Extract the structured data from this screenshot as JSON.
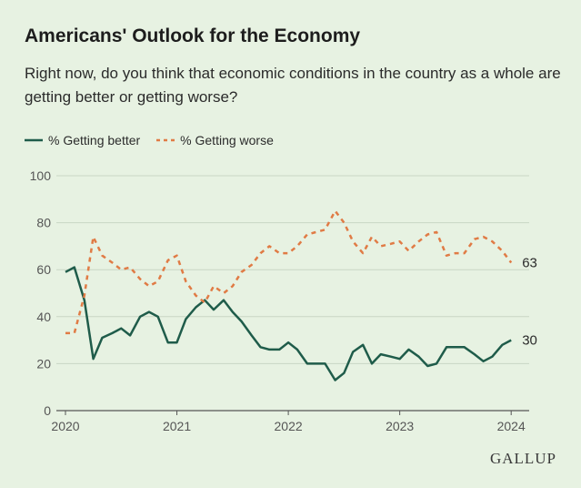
{
  "header": {
    "title": "Americans' Outlook for the Economy",
    "subtitle": "Right now, do you think that economic conditions in the country as a whole are getting better or getting worse?"
  },
  "brand": "GALLUP",
  "colors": {
    "better": "#1f5c4a",
    "worse": "#e07b45",
    "grid": "#c9d6c4",
    "text": "#555555"
  },
  "chart_data": {
    "type": "line",
    "xlim": [
      2020,
      2024.08
    ],
    "ylim": [
      0,
      100
    ],
    "yticks": [
      0,
      20,
      40,
      60,
      80,
      100
    ],
    "xticks": [
      2020,
      2021,
      2022,
      2023,
      2024
    ],
    "grid": true,
    "legend_position": "top-left",
    "series": [
      {
        "name": "% Getting better",
        "style": "solid",
        "end_label": "30",
        "points": [
          [
            2020.0,
            59
          ],
          [
            2020.08,
            61
          ],
          [
            2020.17,
            47
          ],
          [
            2020.25,
            22
          ],
          [
            2020.33,
            31
          ],
          [
            2020.42,
            33
          ],
          [
            2020.5,
            35
          ],
          [
            2020.58,
            32
          ],
          [
            2020.67,
            40
          ],
          [
            2020.75,
            42
          ],
          [
            2020.83,
            40
          ],
          [
            2020.92,
            29
          ],
          [
            2021.0,
            29
          ],
          [
            2021.08,
            39
          ],
          [
            2021.17,
            44
          ],
          [
            2021.25,
            47
          ],
          [
            2021.33,
            43
          ],
          [
            2021.42,
            47
          ],
          [
            2021.5,
            42
          ],
          [
            2021.58,
            38
          ],
          [
            2021.67,
            32
          ],
          [
            2021.75,
            27
          ],
          [
            2021.83,
            26
          ],
          [
            2021.92,
            26
          ],
          [
            2022.0,
            29
          ],
          [
            2022.08,
            26
          ],
          [
            2022.17,
            20
          ],
          [
            2022.25,
            20
          ],
          [
            2022.33,
            20
          ],
          [
            2022.42,
            13
          ],
          [
            2022.5,
            16
          ],
          [
            2022.58,
            25
          ],
          [
            2022.67,
            28
          ],
          [
            2022.75,
            20
          ],
          [
            2022.83,
            24
          ],
          [
            2022.92,
            23
          ],
          [
            2023.0,
            22
          ],
          [
            2023.08,
            26
          ],
          [
            2023.17,
            23
          ],
          [
            2023.25,
            19
          ],
          [
            2023.33,
            20
          ],
          [
            2023.42,
            27
          ],
          [
            2023.5,
            27
          ],
          [
            2023.58,
            27
          ],
          [
            2023.67,
            24
          ],
          [
            2023.75,
            21
          ],
          [
            2023.83,
            23
          ],
          [
            2023.92,
            28
          ],
          [
            2024.0,
            30
          ]
        ]
      },
      {
        "name": "% Getting worse",
        "style": "dashed",
        "end_label": "63",
        "points": [
          [
            2020.0,
            33
          ],
          [
            2020.08,
            33
          ],
          [
            2020.17,
            49
          ],
          [
            2020.25,
            74
          ],
          [
            2020.33,
            66
          ],
          [
            2020.42,
            63
          ],
          [
            2020.5,
            60
          ],
          [
            2020.58,
            61
          ],
          [
            2020.67,
            56
          ],
          [
            2020.75,
            53
          ],
          [
            2020.83,
            55
          ],
          [
            2020.92,
            64
          ],
          [
            2021.0,
            66
          ],
          [
            2021.08,
            55
          ],
          [
            2021.17,
            49
          ],
          [
            2021.25,
            46
          ],
          [
            2021.33,
            53
          ],
          [
            2021.42,
            50
          ],
          [
            2021.5,
            53
          ],
          [
            2021.58,
            59
          ],
          [
            2021.67,
            62
          ],
          [
            2021.75,
            67
          ],
          [
            2021.83,
            70
          ],
          [
            2021.92,
            67
          ],
          [
            2022.0,
            67
          ],
          [
            2022.08,
            70
          ],
          [
            2022.17,
            75
          ],
          [
            2022.25,
            76
          ],
          [
            2022.33,
            77
          ],
          [
            2022.42,
            85
          ],
          [
            2022.5,
            80
          ],
          [
            2022.58,
            72
          ],
          [
            2022.67,
            67
          ],
          [
            2022.75,
            74
          ],
          [
            2022.83,
            70
          ],
          [
            2022.92,
            71
          ],
          [
            2023.0,
            72
          ],
          [
            2023.08,
            68
          ],
          [
            2023.17,
            72
          ],
          [
            2023.25,
            75
          ],
          [
            2023.33,
            76
          ],
          [
            2023.42,
            66
          ],
          [
            2023.5,
            67
          ],
          [
            2023.58,
            67
          ],
          [
            2023.67,
            73
          ],
          [
            2023.75,
            74
          ],
          [
            2023.83,
            72
          ],
          [
            2023.92,
            68
          ],
          [
            2024.0,
            63
          ]
        ]
      }
    ]
  }
}
